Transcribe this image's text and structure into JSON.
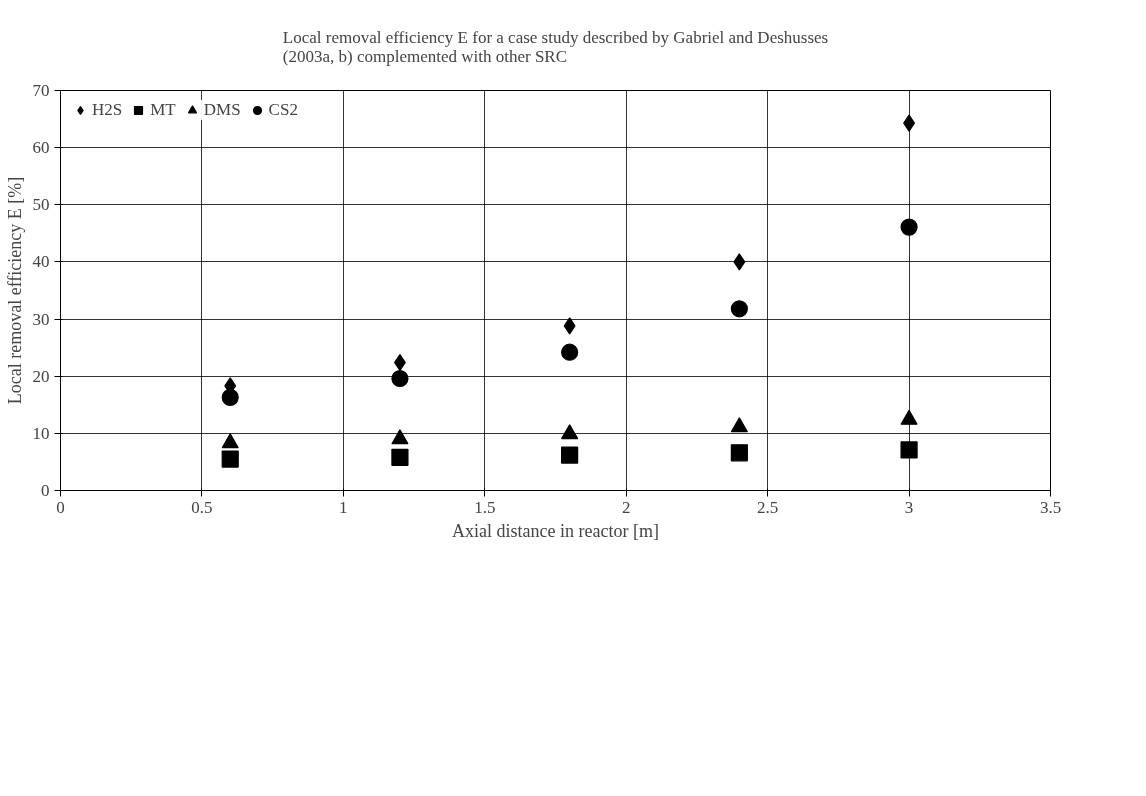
{
  "chart_data": {
    "type": "scatter",
    "title": "Local removal efficiency E for a case study described by Gabriel and Deshusses (2003a, b) complemented with other SRC",
    "xlabel": "Axial distance in reactor [m]",
    "ylabel": "Local removal efficiency E [%]",
    "x": [
      0.6,
      1.2,
      1.8,
      2.4,
      3.0
    ],
    "series": [
      {
        "name": "H2S",
        "color": "#000000",
        "marker": "diamond",
        "values": [
          18.3,
          22.4,
          28.8,
          40.0,
          64.3
        ]
      },
      {
        "name": "MT",
        "color": "#000000",
        "marker": "square",
        "values": [
          5.5,
          5.8,
          6.2,
          6.6,
          7.1
        ]
      },
      {
        "name": "DMS",
        "color": "#000000",
        "marker": "triangle",
        "values": [
          8.3,
          9.0,
          9.9,
          11.1,
          12.4
        ]
      },
      {
        "name": "CS2",
        "color": "#000000",
        "marker": "circle",
        "values": [
          16.3,
          19.6,
          24.2,
          31.8,
          46.1
        ]
      }
    ],
    "xlim": [
      0,
      3.5
    ],
    "xticks": [
      0,
      0.5,
      1,
      1.5,
      2,
      2.5,
      3,
      3.5
    ],
    "ylim": [
      0,
      70
    ],
    "yticks": [
      0,
      10,
      20,
      30,
      40,
      50,
      60,
      70
    ],
    "grid": true,
    "legend": "top left"
  }
}
